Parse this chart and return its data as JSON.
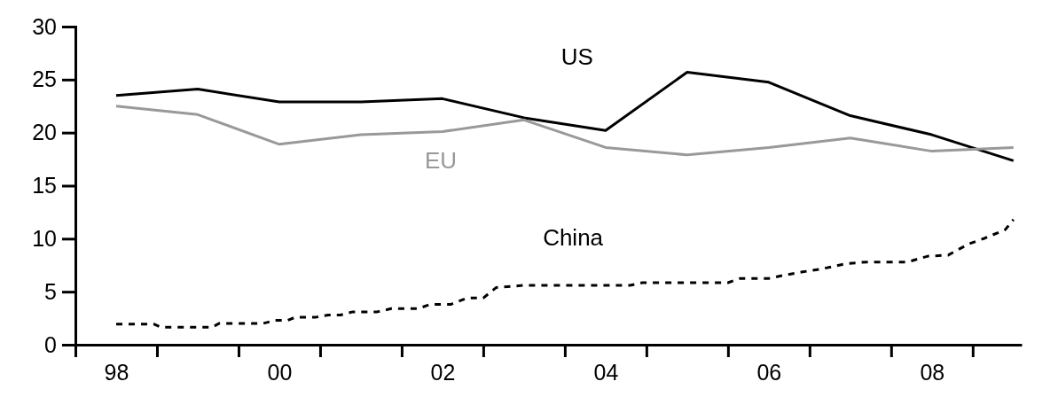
{
  "chart_data": {
    "type": "line",
    "xlim": [
      1997.5,
      2009.1
    ],
    "ylim": [
      0,
      30
    ],
    "xticks": [
      {
        "value": 1997.5,
        "label": null
      },
      {
        "value": 1998,
        "label": "98"
      },
      {
        "value": 1998.5,
        "label": null
      },
      {
        "value": 1999.5,
        "label": null
      },
      {
        "value": 2000,
        "label": "00"
      },
      {
        "value": 2000.5,
        "label": null
      },
      {
        "value": 2001.5,
        "label": null
      },
      {
        "value": 2002,
        "label": "02"
      },
      {
        "value": 2002.5,
        "label": null
      },
      {
        "value": 2003.5,
        "label": null
      },
      {
        "value": 2004,
        "label": "04"
      },
      {
        "value": 2004.5,
        "label": null
      },
      {
        "value": 2005.5,
        "label": null
      },
      {
        "value": 2006,
        "label": "06"
      },
      {
        "value": 2006.5,
        "label": null
      },
      {
        "value": 2007.5,
        "label": null
      },
      {
        "value": 2008,
        "label": "08"
      },
      {
        "value": 2008.5,
        "label": null
      }
    ],
    "yticks": [
      0,
      5,
      10,
      15,
      20,
      25,
      30
    ],
    "grid": false,
    "legend": false,
    "series": [
      {
        "name": "US",
        "color": "#000000",
        "line_style": "solid",
        "x": [
          1998,
          1999,
          2000,
          2001,
          2002,
          2003,
          2004,
          2005,
          2006,
          2007,
          2008,
          2009
        ],
        "values": [
          23.5,
          24.1,
          22.9,
          22.9,
          23.2,
          21.4,
          20.2,
          25.7,
          24.75,
          21.6,
          19.8,
          17.35
        ]
      },
      {
        "name": "EU",
        "color": "#999999",
        "line_style": "solid",
        "x": [
          1998,
          1999,
          2000,
          2001,
          2002,
          2003,
          2004,
          2005,
          2006,
          2007,
          2008,
          2009
        ],
        "values": [
          22.5,
          21.7,
          18.9,
          19.8,
          20.1,
          21.2,
          18.6,
          17.9,
          18.6,
          19.5,
          18.25,
          18.6
        ]
      },
      {
        "name": "China",
        "color": "#000000",
        "line_style": "dashed",
        "x": [
          1998,
          1998.46,
          1998.55,
          1999.18,
          1999.26,
          1999.8,
          1999.95,
          2000.1,
          2000.2,
          2000.45,
          2000.6,
          2000.75,
          2000.9,
          2001.2,
          2001.37,
          2001.7,
          2001.85,
          2002.1,
          2002.3,
          2002.5,
          2002.66,
          2002.85,
          2003,
          2004.3,
          2004.45,
          2005.5,
          2005.65,
          2006,
          2006.15,
          2006.4,
          2006.65,
          2006.95,
          2007.2,
          2007.7,
          2007.95,
          2008.2,
          2008.45,
          2008.65,
          2008.9,
          2009
        ],
        "values": [
          1.95,
          1.95,
          1.65,
          1.65,
          2,
          2,
          2.3,
          2.3,
          2.6,
          2.6,
          2.8,
          2.8,
          3.1,
          3.1,
          3.4,
          3.4,
          3.8,
          3.8,
          4.4,
          4.4,
          5.4,
          5.5,
          5.6,
          5.6,
          5.85,
          5.85,
          6.25,
          6.25,
          6.5,
          6.85,
          7.15,
          7.65,
          7.8,
          7.8,
          8.35,
          8.45,
          9.5,
          10.05,
          10.85,
          11.8
        ]
      }
    ]
  }
}
